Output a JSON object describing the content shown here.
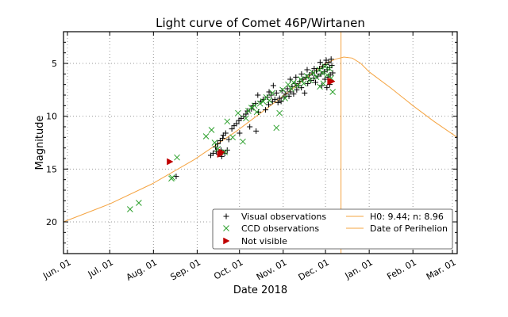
{
  "chart_data": {
    "type": "scatter",
    "title": "Light curve of Comet 46P/Wirtanen",
    "xlabel": "Date 2018",
    "ylabel": "Magnitude",
    "x_unit": "days since Jun. 01 2018",
    "xlim": [
      -2.8,
      276.4
    ],
    "ylim": [
      23.0,
      2.0
    ],
    "y_inverted": true,
    "grid": true,
    "x_ticks": [
      {
        "label": "Jun. 01",
        "day": 0
      },
      {
        "label": "Jul. 01",
        "day": 30
      },
      {
        "label": "Aug. 01",
        "day": 61
      },
      {
        "label": "Sep. 01",
        "day": 92
      },
      {
        "label": "Oct. 01",
        "day": 122
      },
      {
        "label": "Nov. 01",
        "day": 153
      },
      {
        "label": "Dec. 01",
        "day": 183
      },
      {
        "label": "Jan. 01",
        "day": 214
      },
      {
        "label": "Feb. 01",
        "day": 245
      },
      {
        "label": "Mar. 01",
        "day": 273
      }
    ],
    "y_ticks": [
      5,
      10,
      15,
      20
    ],
    "legend": {
      "placement": "lower-right",
      "entries": [
        {
          "label": "Visual observations",
          "marker": "+",
          "color": "#000000"
        },
        {
          "label": "CCD observations",
          "marker": "x",
          "color": "#2ca02c"
        },
        {
          "label": "Not visible",
          "marker": "triangle-right",
          "color": "#c00000"
        },
        {
          "label": "H0: 9.44; n: 8.96",
          "marker": "line",
          "color": "#f5a442"
        },
        {
          "label": "Date of Perihelion",
          "marker": "line",
          "color": "#f5a442"
        }
      ]
    },
    "model": {
      "name": "H0: 9.44; n: 8.96",
      "H0": 9.44,
      "n": 8.96,
      "color": "#f5a442",
      "points": [
        {
          "day": -2.8,
          "mag": 20.0
        },
        {
          "day": 30,
          "mag": 18.3
        },
        {
          "day": 60,
          "mag": 16.4
        },
        {
          "day": 90,
          "mag": 14.1
        },
        {
          "day": 120,
          "mag": 11.4
        },
        {
          "day": 150,
          "mag": 8.4
        },
        {
          "day": 170,
          "mag": 6.3
        },
        {
          "day": 183,
          "mag": 5.0
        },
        {
          "day": 190,
          "mag": 4.6
        },
        {
          "day": 196,
          "mag": 4.4
        },
        {
          "day": 202,
          "mag": 4.5
        },
        {
          "day": 208,
          "mag": 5.0
        },
        {
          "day": 214,
          "mag": 5.8
        },
        {
          "day": 230,
          "mag": 7.4
        },
        {
          "day": 245,
          "mag": 9.0
        },
        {
          "day": 260,
          "mag": 10.5
        },
        {
          "day": 276.4,
          "mag": 12.0
        }
      ]
    },
    "perihelion": {
      "label": "Date of Perihelion",
      "day": 194,
      "color": "#f5a442"
    },
    "series": [
      {
        "name": "Visual observations",
        "marker": "+",
        "color": "#000000",
        "points": [
          [
            77.1,
            15.7
          ],
          [
            101.6,
            13.7
          ],
          [
            103.3,
            13.5
          ],
          [
            105.5,
            13.3
          ],
          [
            107.2,
            13.6
          ],
          [
            108.9,
            13.2
          ],
          [
            105.0,
            12.9
          ],
          [
            106.6,
            12.6
          ],
          [
            108.3,
            12.3
          ],
          [
            110.0,
            12.1
          ],
          [
            109.4,
            13.8
          ],
          [
            111.6,
            13.5
          ],
          [
            113.3,
            13.2
          ],
          [
            110.5,
            11.8
          ],
          [
            112.2,
            11.6
          ],
          [
            114.4,
            12.2
          ],
          [
            116.6,
            11.2
          ],
          [
            118.2,
            10.9
          ],
          [
            119.9,
            10.7
          ],
          [
            121.6,
            10.4
          ],
          [
            122.1,
            11.6
          ],
          [
            123.2,
            10.2
          ],
          [
            124.9,
            10.0
          ],
          [
            126.6,
            9.8
          ],
          [
            127.7,
            9.5
          ],
          [
            129.3,
            11.0
          ],
          [
            130.5,
            9.3
          ],
          [
            131.6,
            9.0
          ],
          [
            133.3,
            8.8
          ],
          [
            133.8,
            11.4
          ],
          [
            135.4,
            9.6
          ],
          [
            137.1,
            8.6
          ],
          [
            138.8,
            8.4
          ],
          [
            140.5,
            9.4
          ],
          [
            141.6,
            8.2
          ],
          [
            142.7,
            8.9
          ],
          [
            144.3,
            8.0
          ],
          [
            145.4,
            8.6
          ],
          [
            147.1,
            8.4
          ],
          [
            148.2,
            7.8
          ],
          [
            149.3,
            8.7
          ],
          [
            150.4,
            8.3
          ],
          [
            151.5,
            8.6
          ],
          [
            152.1,
            7.6
          ],
          [
            153.7,
            8.2
          ],
          [
            154.8,
            7.9
          ],
          [
            156.0,
            7.4
          ],
          [
            157.1,
            8.1
          ],
          [
            158.2,
            7.7
          ],
          [
            159.3,
            7.2
          ],
          [
            160.4,
            7.9
          ],
          [
            161.5,
            6.9
          ],
          [
            162.6,
            7.5
          ],
          [
            163.7,
            7.1
          ],
          [
            164.8,
            6.7
          ],
          [
            165.9,
            7.3
          ],
          [
            167.1,
            6.5
          ],
          [
            168.2,
            7.8
          ],
          [
            169.3,
            6.3
          ],
          [
            170.4,
            6.9
          ],
          [
            171.5,
            6.1
          ],
          [
            172.6,
            6.6
          ],
          [
            173.7,
            5.9
          ],
          [
            174.8,
            6.4
          ],
          [
            175.9,
            6.8
          ],
          [
            176.5,
            5.7
          ],
          [
            177.6,
            6.2
          ],
          [
            178.7,
            5.5
          ],
          [
            179.8,
            6.0
          ],
          [
            180.3,
            7.1
          ],
          [
            180.9,
            5.3
          ],
          [
            182.0,
            5.8
          ],
          [
            182.6,
            6.5
          ],
          [
            183.1,
            5.1
          ],
          [
            184.2,
            5.6
          ],
          [
            184.7,
            6.3
          ],
          [
            185.3,
            4.9
          ],
          [
            185.9,
            5.4
          ],
          [
            186.4,
            6.1
          ],
          [
            187.0,
            4.6
          ],
          [
            187.5,
            5.2
          ],
          [
            188.1,
            5.9
          ],
          [
            184.0,
            7.3
          ],
          [
            186.0,
            7.0
          ],
          [
            183.5,
            4.7
          ],
          [
            179.2,
            4.9
          ],
          [
            175.0,
            5.5
          ],
          [
            170.0,
            5.6
          ],
          [
            166.0,
            6.0
          ],
          [
            162.0,
            6.3
          ],
          [
            158.0,
            6.5
          ],
          [
            146.0,
            7.1
          ],
          [
            143.0,
            7.7
          ],
          [
            135.0,
            8.0
          ]
        ]
      },
      {
        "name": "CCD observations",
        "marker": "x",
        "color": "#2ca02c",
        "points": [
          [
            44.4,
            18.8
          ],
          [
            50.6,
            18.2
          ],
          [
            73.7,
            15.9
          ],
          [
            74.3,
            15.8
          ],
          [
            77.7,
            13.9
          ],
          [
            98.3,
            11.9
          ],
          [
            102.2,
            11.3
          ],
          [
            104.4,
            12.5
          ],
          [
            106.6,
            13.1
          ],
          [
            111.6,
            13.4
          ],
          [
            113.3,
            10.5
          ],
          [
            117.2,
            12.0
          ],
          [
            121.0,
            9.7
          ],
          [
            124.4,
            12.4
          ],
          [
            126.6,
            10.2
          ],
          [
            128.3,
            9.5
          ],
          [
            130.5,
            9.2
          ],
          [
            132.7,
            9.0
          ],
          [
            134.3,
            9.6
          ],
          [
            136.6,
            8.8
          ],
          [
            138.8,
            8.6
          ],
          [
            141.0,
            8.2
          ],
          [
            143.2,
            8.5
          ],
          [
            145.4,
            7.8
          ],
          [
            148.2,
            11.1
          ],
          [
            150.4,
            9.7
          ],
          [
            152.6,
            7.5
          ],
          [
            154.3,
            8.3
          ],
          [
            156.5,
            7.0
          ],
          [
            158.7,
            7.4
          ],
          [
            160.4,
            6.8
          ],
          [
            163.2,
            7.1
          ],
          [
            165.4,
            6.5
          ],
          [
            167.6,
            6.9
          ],
          [
            169.8,
            6.2
          ],
          [
            172.0,
            6.6
          ],
          [
            174.2,
            5.9
          ],
          [
            176.5,
            6.3
          ],
          [
            178.7,
            5.6
          ],
          [
            180.9,
            5.9
          ],
          [
            182.6,
            5.3
          ],
          [
            184.2,
            6.1
          ],
          [
            185.9,
            5.5
          ],
          [
            187.0,
            6.4
          ],
          [
            188.1,
            7.7
          ],
          [
            181.5,
            6.9
          ],
          [
            179.0,
            7.2
          ]
        ]
      },
      {
        "name": "Not visible",
        "marker": "triangle-right",
        "color": "#c00000",
        "points": [
          [
            72.6,
            14.3
          ],
          [
            108.3,
            13.6
          ],
          [
            109.4,
            13.4
          ],
          [
            186.4,
            6.7
          ],
          [
            187.5,
            6.7
          ]
        ]
      }
    ]
  }
}
